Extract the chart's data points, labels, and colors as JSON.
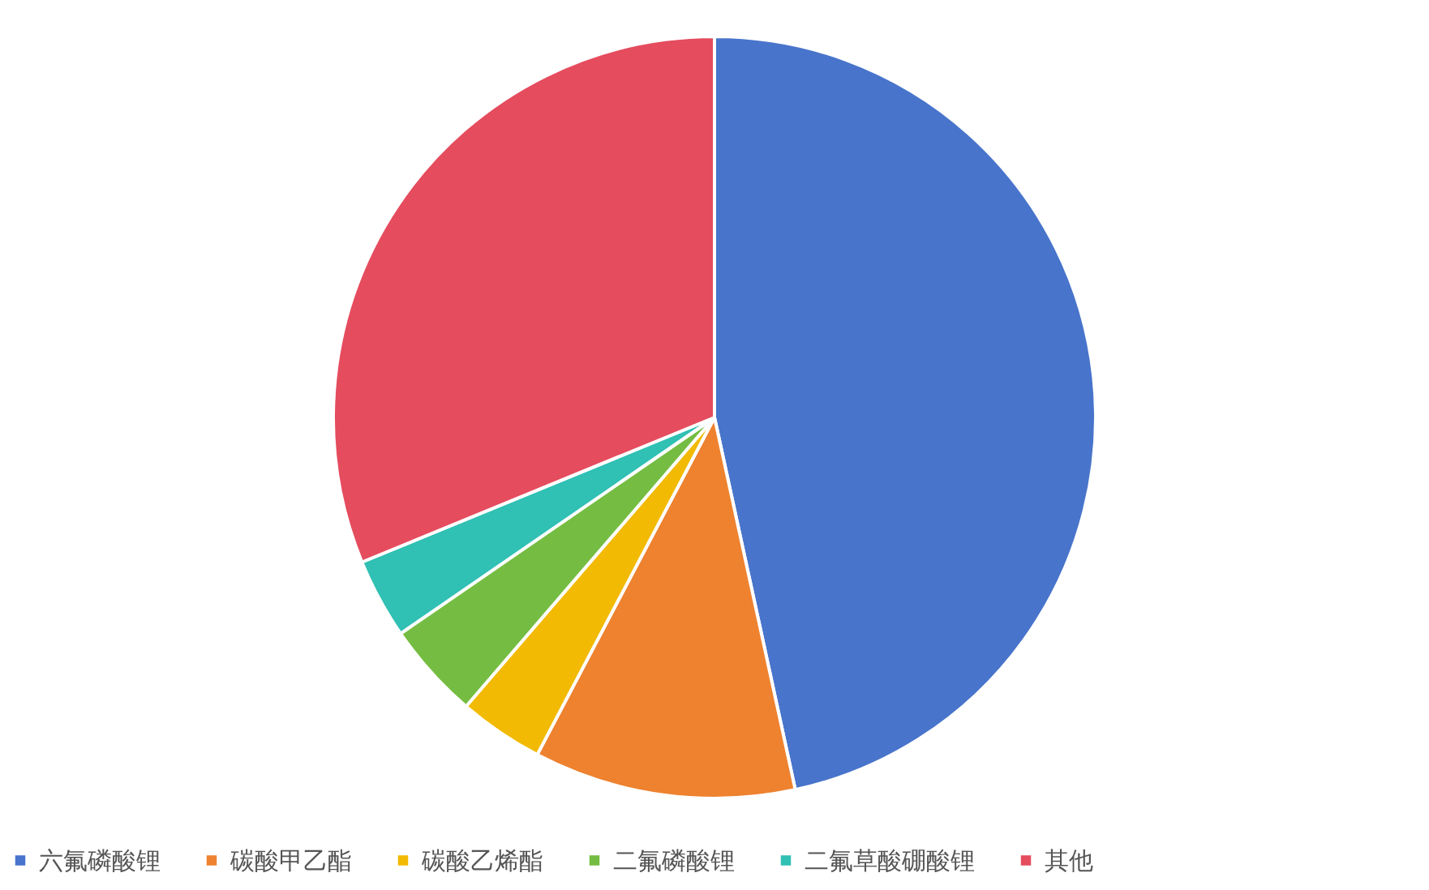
{
  "chart_data": {
    "type": "pie",
    "categories": [
      "六氟磷酸锂",
      "碳酸甲乙酯",
      "碳酸乙烯酯",
      "二氟磷酸锂",
      "二氟草酸硼酸锂",
      "其他"
    ],
    "values": [
      46.6,
      11.1,
      3.6,
      4.1,
      3.4,
      31.2
    ],
    "colors": [
      "#4874cb",
      "#ee822f",
      "#f2ba02",
      "#75bd42",
      "#30c0b4",
      "#e54c5e"
    ],
    "legend": "bottom"
  }
}
